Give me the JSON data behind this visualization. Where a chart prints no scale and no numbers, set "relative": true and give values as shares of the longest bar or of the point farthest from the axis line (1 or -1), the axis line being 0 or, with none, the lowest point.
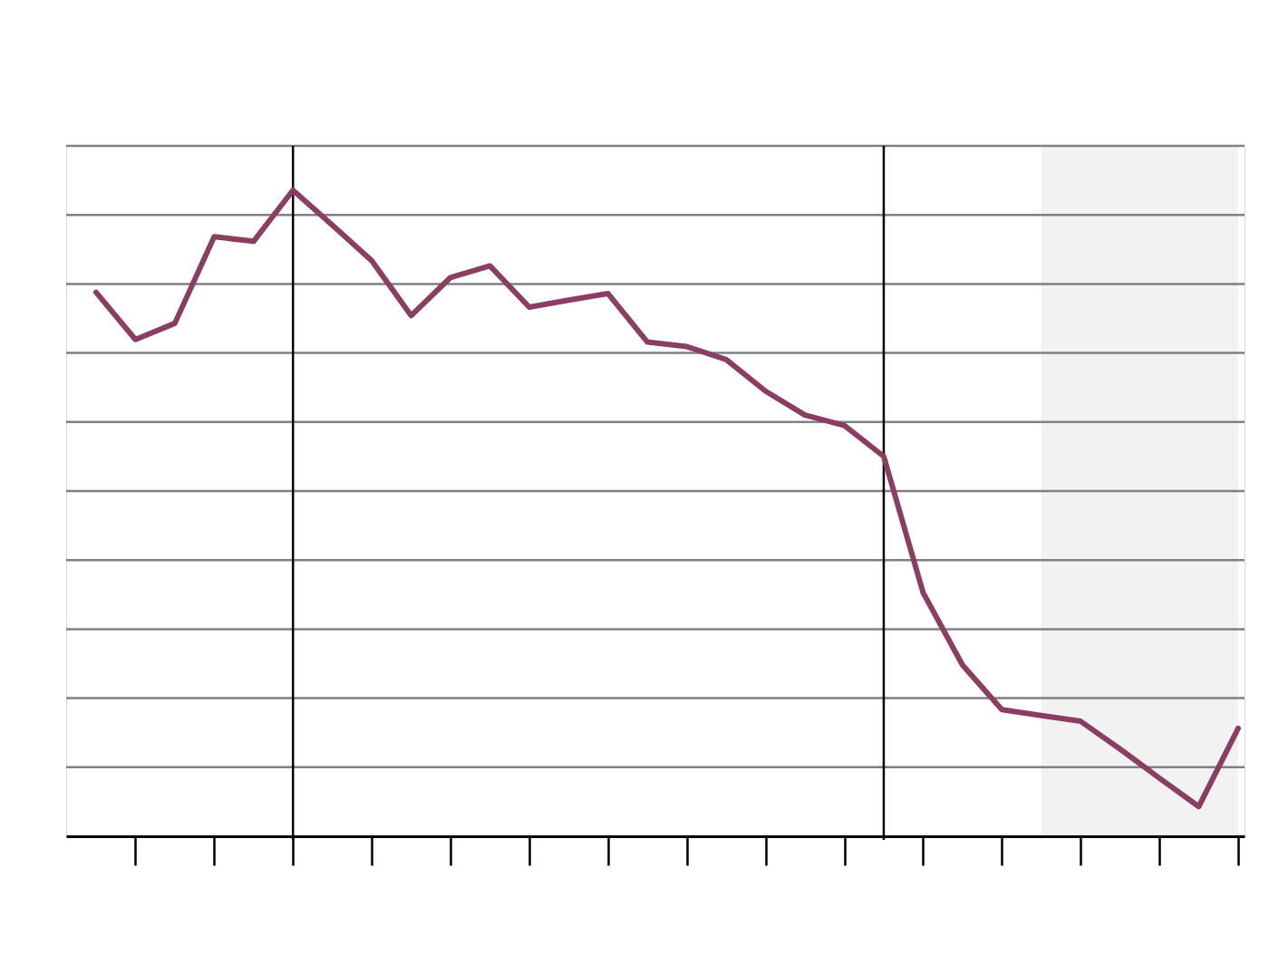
{
  "chart_data": {
    "type": "line",
    "relative": true,
    "grid": "y",
    "color": "#8a3f62",
    "categories": [
      null,
      null,
      null,
      null,
      null,
      null,
      null,
      null,
      null,
      null,
      null,
      null,
      null,
      null,
      null,
      null,
      null,
      null,
      null,
      null,
      null,
      null,
      null,
      null,
      null,
      null,
      null,
      null,
      null,
      null
    ],
    "values": [
      0.842,
      0.769,
      0.794,
      0.928,
      0.921,
      1,
      0.946,
      0.891,
      0.806,
      0.865,
      0.883,
      0.819,
      0.83,
      0.84,
      0.765,
      0.758,
      0.738,
      0.689,
      0.652,
      0.636,
      0.588,
      0.377,
      0.265,
      0.196,
      0.187,
      0.178,
      0.135,
      0.09,
      0.046,
      0.167
    ]
  }
}
